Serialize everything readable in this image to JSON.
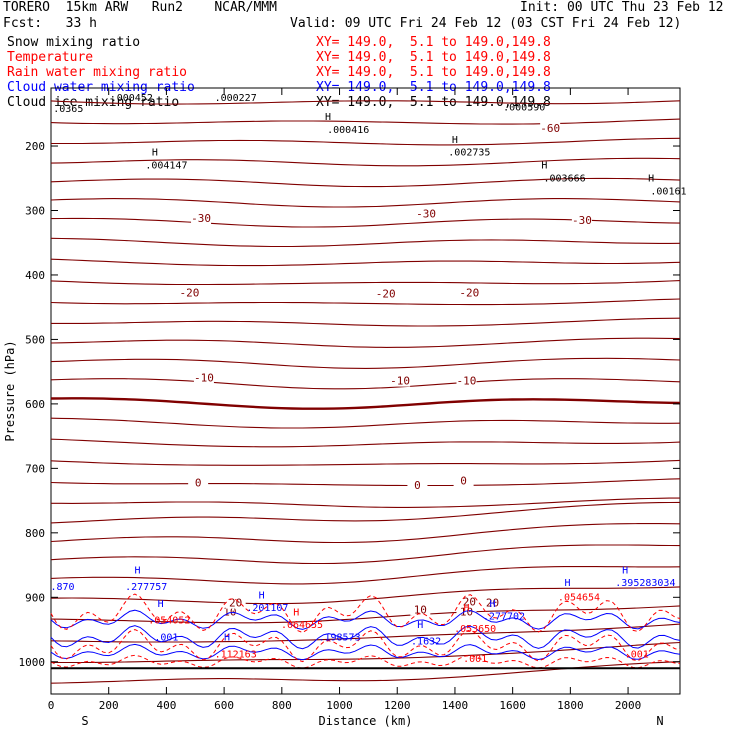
{
  "header": {
    "model": "TORERO  15km ARW   Run2    NCAR/MMM",
    "init": "Init: 00 UTC Thu 23 Feb 12",
    "fcst": "Fcst:   33 h",
    "valid": "Valid: 09 UTC Fri 24 Feb 12 (03 CST Fri 24 Feb 12)"
  },
  "legend": [
    {
      "name": "Snow mixing ratio",
      "loc": "XY= 149.0,  5.1 to 149.0,149.8",
      "color": "#000000"
    },
    {
      "name": "Temperature",
      "loc": "XY= 149.0,  5.1 to 149.0,149.8",
      "color": "#ff0000"
    },
    {
      "name": "Rain water mixing ratio",
      "loc": "XY= 149.0,  5.1 to 149.0,149.8",
      "color": "#ff0000"
    },
    {
      "name": "Cloud water mixing ratio",
      "loc": "XY= 149.0,  5.1 to 149.0,149.8",
      "color": "#0000ff"
    },
    {
      "name": "Cloud ice mixing ratio",
      "loc": "XY= 149.0,  5.1 to 149.0,149.8",
      "color": "#000000"
    }
  ],
  "chart_data": {
    "type": "contour cross-section",
    "xlabel": "Distance (km)",
    "ylabel": "Pressure (hPa)",
    "xlim": [
      0,
      2180
    ],
    "ylim": [
      1050,
      110
    ],
    "x_ticks": [
      0,
      200,
      400,
      600,
      800,
      1000,
      1200,
      1400,
      1600,
      1800,
      2000
    ],
    "x_tick_labels": [
      "0",
      "200",
      "400",
      "600",
      "800",
      "1000",
      "1200",
      "1400",
      "1600",
      "1800",
      "2000"
    ],
    "y_ticks": [
      200,
      300,
      400,
      500,
      600,
      700,
      800,
      900,
      1000
    ],
    "y_tick_labels": [
      "200",
      "300",
      "400",
      "500",
      "600",
      "700",
      "800",
      "900",
      "1000"
    ],
    "end_labels": {
      "left": "S",
      "right": "N"
    },
    "temperature_contours": [
      {
        "level": -60,
        "label": "-60",
        "label_points": [
          [
            1730,
            175
          ]
        ]
      },
      {
        "level": -30,
        "label": "-30",
        "label_points": [
          [
            520,
            315
          ],
          [
            1300,
            308
          ],
          [
            1840,
            318
          ]
        ]
      },
      {
        "level": -20,
        "label": "-20",
        "label_points": [
          [
            480,
            430
          ],
          [
            1160,
            432
          ],
          [
            1450,
            430
          ]
        ]
      },
      {
        "level": -10,
        "label": "-10",
        "label_points": [
          [
            530,
            562
          ],
          [
            1210,
            567
          ],
          [
            1440,
            567
          ]
        ]
      },
      {
        "level": 0,
        "label": "0",
        "label_points": [
          [
            510,
            725
          ],
          [
            1270,
            729
          ],
          [
            1430,
            722
          ]
        ]
      },
      {
        "level": 10,
        "label": "10",
        "label_points": [
          [
            620,
            925
          ],
          [
            1280,
            922
          ],
          [
            1440,
            925
          ]
        ]
      },
      {
        "level": 20,
        "label": "20",
        "label_points": [
          [
            640,
            1122
          ],
          [
            1450,
            1120
          ],
          [
            1530,
            1122
          ]
        ]
      }
    ],
    "annotations": [
      {
        "text": "H",
        "x": 960,
        "y": 160,
        "color": "#000000"
      },
      {
        "text": ".000416",
        "x": 1030,
        "y": 180,
        "color": "#000000"
      },
      {
        "text": "H",
        "x": 1400,
        "y": 195,
        "color": "#000000"
      },
      {
        "text": ".002735",
        "x": 1450,
        "y": 215,
        "color": "#000000"
      },
      {
        "text": "H",
        "x": 360,
        "y": 215,
        "color": "#000000"
      },
      {
        "text": ".004147",
        "x": 400,
        "y": 235,
        "color": "#000000"
      },
      {
        "text": "H",
        "x": 1710,
        "y": 235,
        "color": "#000000"
      },
      {
        "text": ".003666",
        "x": 1780,
        "y": 255,
        "color": "#000000"
      },
      {
        "text": "H",
        "x": 2080,
        "y": 255,
        "color": "#000000"
      },
      {
        "text": ".00161",
        "x": 2140,
        "y": 275,
        "color": "#000000"
      },
      {
        "text": ".000452",
        "x": 280,
        "y": 130,
        "color": "#000000"
      },
      {
        "text": ".000227",
        "x": 640,
        "y": 130,
        "color": "#000000"
      },
      {
        "text": ".0365",
        "x": 60,
        "y": 147,
        "color": "#000000"
      },
      {
        "text": ".000590",
        "x": 1640,
        "y": 145,
        "color": "#000000"
      },
      {
        "text": "H",
        "x": 300,
        "y": 1010,
        "color": "#0000ff"
      },
      {
        "text": ".277757",
        "x": 330,
        "y": 1030,
        "color": "#0000ff"
      },
      {
        "text": ".870",
        "x": 40,
        "y": 1030,
        "color": "#0000ff"
      },
      {
        "text": "H",
        "x": 380,
        "y": 1050,
        "color": "#0000ff"
      },
      {
        "text": ".054052",
        "x": 410,
        "y": 1070,
        "color": "#ff0000"
      },
      {
        "text": ".001",
        "x": 400,
        "y": 1090,
        "color": "#0000ff"
      },
      {
        "text": "H",
        "x": 610,
        "y": 1090,
        "color": "#0000ff"
      },
      {
        "text": ".112163",
        "x": 640,
        "y": 1110,
        "color": "#ff0000"
      },
      {
        "text": "H",
        "x": 730,
        "y": 1040,
        "color": "#0000ff"
      },
      {
        "text": ".201107",
        "x": 750,
        "y": 1055,
        "color": "#0000ff"
      },
      {
        "text": "H",
        "x": 850,
        "y": 1060,
        "color": "#ff0000"
      },
      {
        "text": ".064655",
        "x": 870,
        "y": 1075,
        "color": "#ff0000"
      },
      {
        "text": ".198573",
        "x": 1000,
        "y": 1090,
        "color": "#0000ff"
      },
      {
        "text": "H",
        "x": 1280,
        "y": 1075,
        "color": "#0000ff"
      },
      {
        "text": ".1632",
        "x": 1300,
        "y": 1095,
        "color": "#0000ff"
      },
      {
        "text": "H",
        "x": 1440,
        "y": 1055,
        "color": "#ff0000"
      },
      {
        "text": ".053650",
        "x": 1470,
        "y": 1080,
        "color": "#ff0000"
      },
      {
        "text": "H",
        "x": 1530,
        "y": 1050,
        "color": "#0000ff"
      },
      {
        "text": ".277702",
        "x": 1570,
        "y": 1065,
        "color": "#0000ff"
      },
      {
        "text": ".001",
        "x": 1470,
        "y": 1000,
        "color": "#ff0000"
      },
      {
        "text": "H",
        "x": 1790,
        "y": 1025,
        "color": "#0000ff"
      },
      {
        "text": ".054654",
        "x": 1830,
        "y": 1042,
        "color": "#ff0000"
      },
      {
        "text": "H",
        "x": 1990,
        "y": 1010,
        "color": "#0000ff"
      },
      {
        "text": ".395283034",
        "x": 2060,
        "y": 1025,
        "color": "#0000ff"
      },
      {
        "text": ".001",
        "x": 2030,
        "y": 1110,
        "color": "#ff0000"
      }
    ]
  }
}
